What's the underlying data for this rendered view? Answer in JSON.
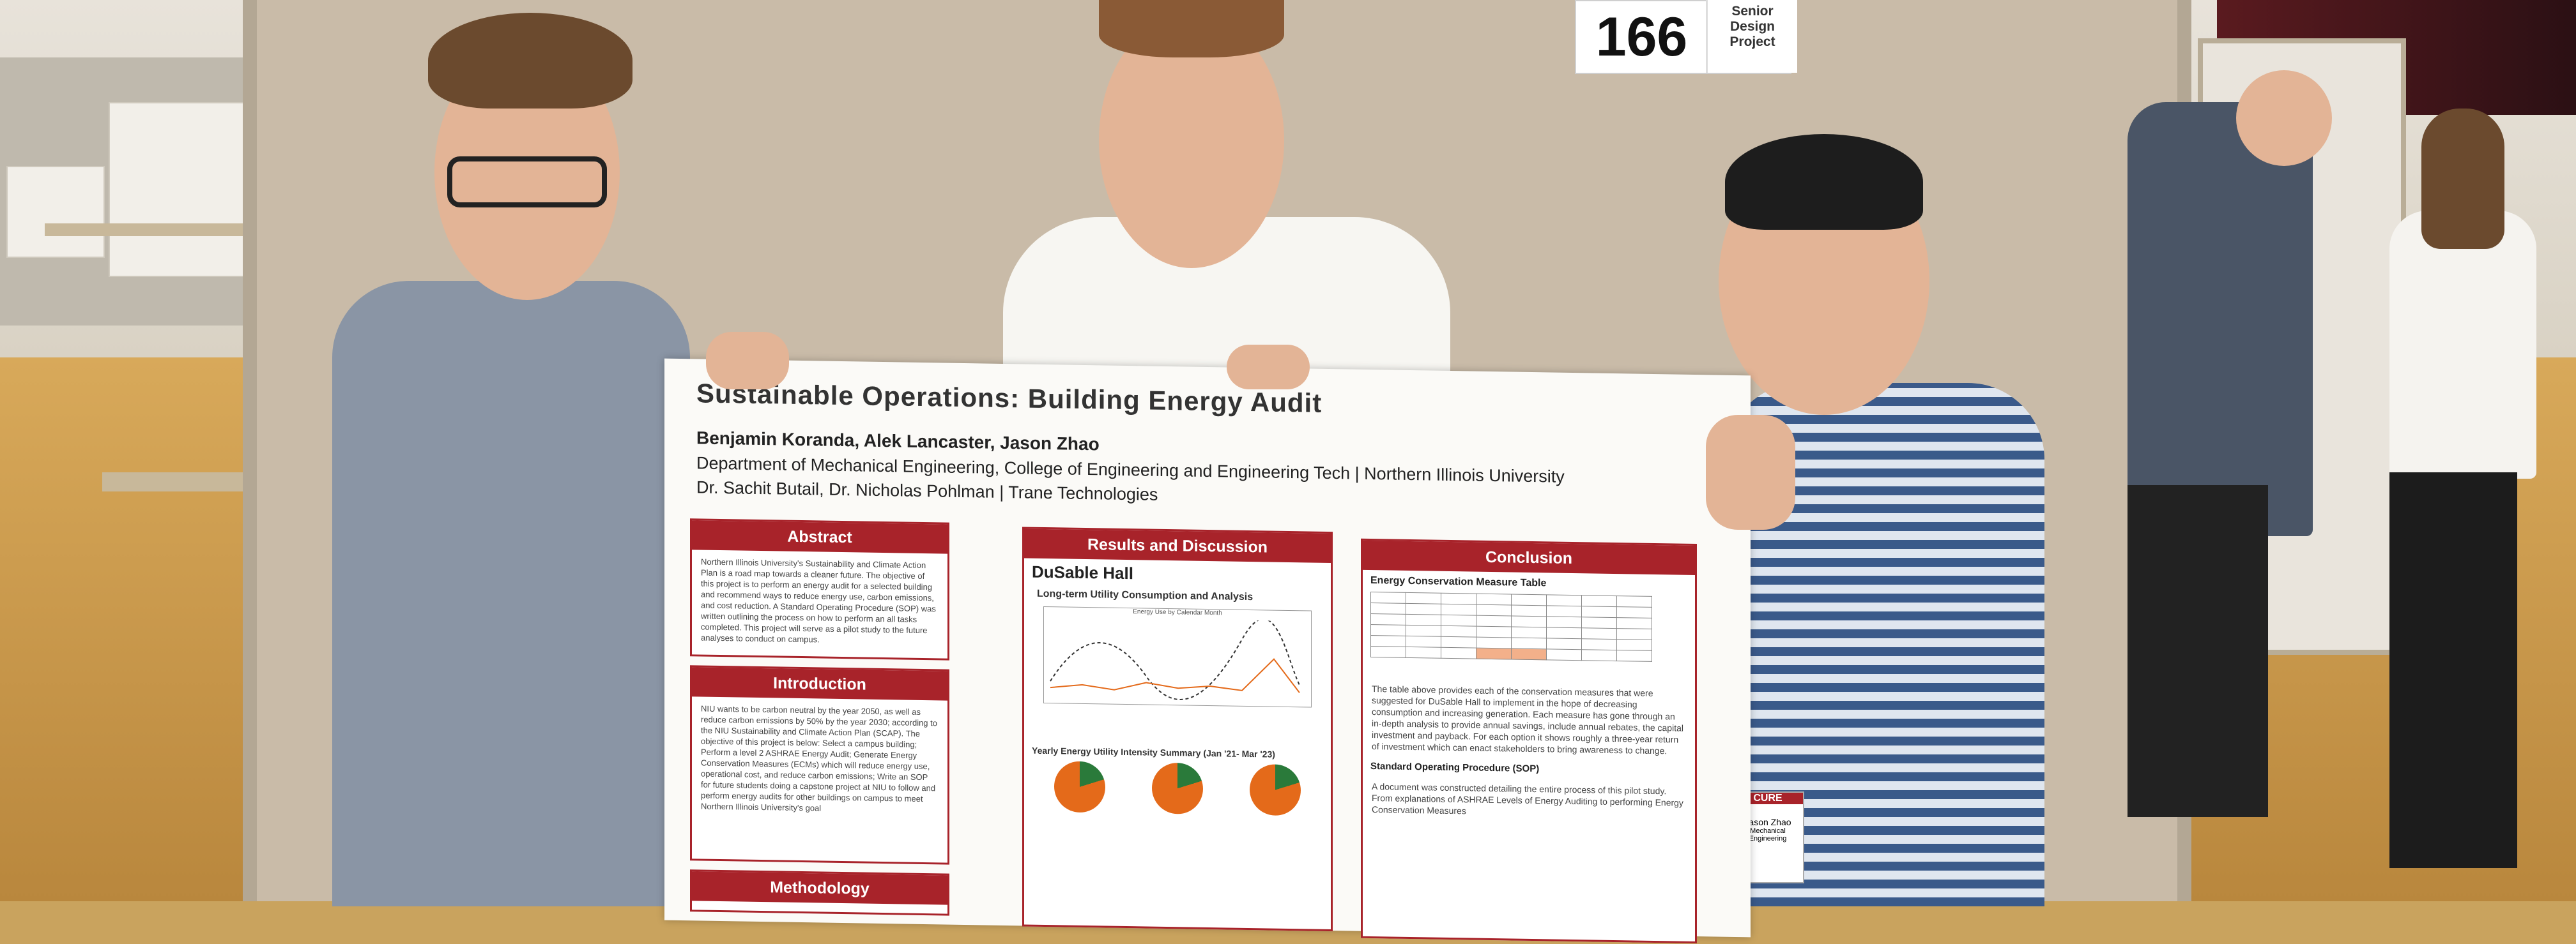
{
  "sign": {
    "number": "166",
    "label": "Senior Design Project"
  },
  "poster": {
    "title": "Sustainable Operations: Building Energy Audit",
    "authors": "Benjamin Koranda, Alek Lancaster, Jason Zhao",
    "department": "Department of Mechanical Engineering, College of Engineering and Engineering Tech | Northern Illinois University",
    "advisors": "Dr. Sachit Butail, Dr. Nicholas Pohlman | Trane Technologies",
    "sections": {
      "abstract": {
        "heading": "Abstract",
        "text": "Northern Illinois University's Sustainability and Climate Action Plan is a road map towards a cleaner future. The objective of this project is to perform an energy audit for a selected building and recommend ways to reduce energy use, carbon emissions, and cost reduction. A Standard Operating Procedure (SOP) was written outlining the process on how to perform an all tasks completed. This project will serve as a pilot study to the future analyses to conduct on campus."
      },
      "introduction": {
        "heading": "Introduction",
        "text": "NIU wants to be carbon neutral by the year 2050, as well as reduce carbon emissions by 50% by the year 2030; according to the NIU Sustainability and Climate Action Plan (SCAP). The objective of this project is below: Select a campus building; Perform a level 2 ASHRAE Energy Audit; Generate Energy Conservation Measures (ECMs) which will reduce energy use, operational cost, and reduce carbon emissions; Write an SOP for future students doing a capstone project at NIU to follow and perform energy audits for other buildings on campus to meet Northern Illinois University's goal"
      },
      "methods": {
        "heading": "Methodology"
      },
      "results": {
        "heading": "Results and Discussion",
        "building": "DuSable Hall",
        "subheading1": "Long-term Utility Consumption and Analysis",
        "chart_title": "Energy Use by Calendar Month",
        "subheading2": "Yearly Energy Utility Intensity Summary (Jan '21- Mar '23)"
      },
      "conclusion": {
        "heading": "Conclusion",
        "table_title": "Energy Conservation Measure Table",
        "text": "The table above provides each of the conservation measures that were suggested for DuSable Hall to implement in the hope of decreasing consumption and increasing generation. Each measure has gone through an in-depth analysis to provide annual savings, include annual rebates, the capital investment and payback. For each option it shows roughly a three-year return of investment which can enact stakeholders to bring awareness to change.",
        "sop_heading": "Standard Operating Procedure (SOP)",
        "sop_text": "A document was constructed detailing the entire process of this pilot study. From explanations of ASHRAE Levels of Energy Auditing to performing Energy Conservation Measures"
      }
    }
  },
  "badge": {
    "tag": "CURE",
    "name": "Jason Zhao",
    "dept": "Mechanical Engineering"
  }
}
